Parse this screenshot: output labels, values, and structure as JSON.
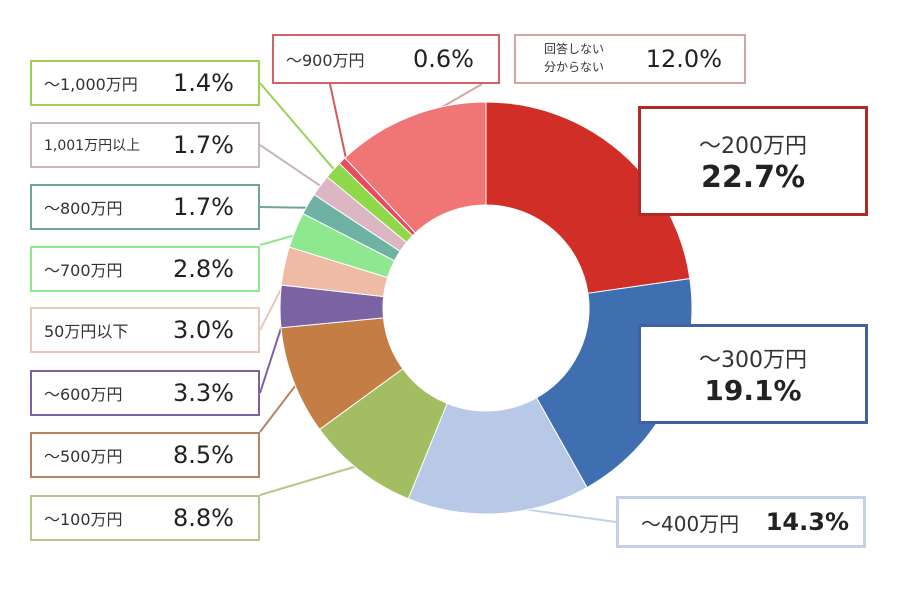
{
  "chart_data": {
    "type": "pie",
    "donut": true,
    "legend": "callout-boxes",
    "slices": [
      {
        "label": "～200万円",
        "value": 22.7,
        "display": "22.7%",
        "color": "#d12e27"
      },
      {
        "label": "～300万円",
        "value": 19.1,
        "display": "19.1%",
        "color": "#3f6fb1"
      },
      {
        "label": "～400万円",
        "value": 14.3,
        "display": "14.3%",
        "color": "#b7c9e6"
      },
      {
        "label": "～100万円",
        "value": 8.8,
        "display": "8.8%",
        "color": "#a3bd62"
      },
      {
        "label": "～500万円",
        "value": 8.5,
        "display": "8.5%",
        "color": "#c37d45"
      },
      {
        "label": "～600万円",
        "value": 3.3,
        "display": "3.3%",
        "color": "#7b62a3"
      },
      {
        "label": "50万円以下",
        "value": 3.0,
        "display": "3.0%",
        "color": "#f0bba5"
      },
      {
        "label": "～700万円",
        "value": 2.8,
        "display": "2.8%",
        "color": "#8fe88f"
      },
      {
        "label": "～800万円",
        "value": 1.7,
        "display": "1.7%",
        "color": "#6fb2a3"
      },
      {
        "label": "1,001万円以上",
        "value": 1.7,
        "display": "1.7%",
        "color": "#dcb7c3"
      },
      {
        "label": "～1,000万円",
        "value": 1.4,
        "display": "1.4%",
        "color": "#8fd84a"
      },
      {
        "label": "～900万円",
        "value": 0.6,
        "display": "0.6%",
        "color": "#e84a5f"
      },
      {
        "label": "回答しない 分からない",
        "label_lines": [
          "回答しない",
          "分からない"
        ],
        "value": 12.0,
        "display": "12.0%",
        "color": "#ef7674"
      }
    ]
  }
}
